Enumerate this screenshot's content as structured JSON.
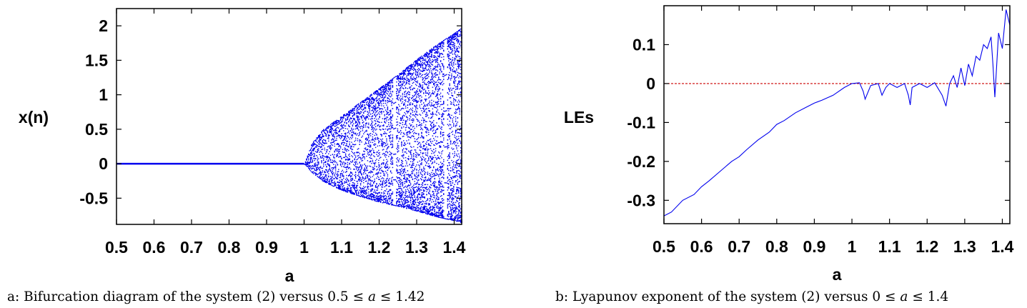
{
  "colors": {
    "series": "#0000ee",
    "zero_line": "#cc0000",
    "axis": "#000000"
  },
  "chart_data": [
    {
      "type": "scatter",
      "xlabel": "a",
      "ylabel": "x(n)",
      "caption": "a: Bifurcation diagram of the system (2) versus 0.5 ≤ 𝑎 ≤ 1.42",
      "xlim": [
        0.5,
        1.42
      ],
      "ylim": [
        -0.88,
        2.25
      ],
      "x_ticks": [
        0.5,
        0.6,
        0.7,
        0.8,
        0.9,
        1,
        1.1,
        1.2,
        1.3,
        1.4
      ],
      "x_tick_labels": [
        "0.5",
        "0.6",
        "0.7",
        "0.8",
        "0.9",
        "1",
        "1.1",
        "1.2",
        "1.3",
        "1.4"
      ],
      "y_ticks": [
        2,
        1.5,
        1,
        0.5,
        0,
        -0.5
      ],
      "y_tick_labels": [
        "2",
        "1.5",
        "1",
        "0.5",
        "0",
        "-0.5"
      ],
      "series": [
        {
          "fixed_point": {
            "a_range": [
              0.5,
              1.0
            ],
            "x": 0
          },
          "envelope": {
            "a": [
              1.0,
              1.02,
              1.05,
              1.1,
              1.15,
              1.2,
              1.25,
              1.3,
              1.35,
              1.4,
              1.42
            ],
            "upper": [
              0,
              0.3,
              0.5,
              0.7,
              0.9,
              1.1,
              1.3,
              1.52,
              1.72,
              1.9,
              1.98
            ],
            "lower": [
              0,
              -0.12,
              -0.25,
              -0.38,
              -0.47,
              -0.55,
              -0.61,
              -0.68,
              -0.76,
              -0.82,
              -0.85
            ]
          },
          "windows_a": [
            1.24,
            1.375
          ]
        }
      ]
    },
    {
      "type": "line",
      "xlabel": "a",
      "ylabel": "LEs",
      "caption": "b: Lyapunov exponent of the system (2) versus 0 ≤ 𝑎 ≤ 1.4",
      "xlim": [
        0.5,
        1.42
      ],
      "ylim": [
        -0.36,
        0.2
      ],
      "x_ticks": [
        0.5,
        0.6,
        0.7,
        0.8,
        0.9,
        1,
        1.1,
        1.2,
        1.3,
        1.4
      ],
      "x_tick_labels": [
        "0.5",
        "0.6",
        "0.7",
        "0.8",
        "0.9",
        "1",
        "1.1",
        "1.2",
        "1.3",
        "1.4"
      ],
      "y_ticks": [
        0.1,
        0,
        -0.1,
        -0.2,
        -0.3
      ],
      "y_tick_labels": [
        "0.1",
        "0",
        "-0.1",
        "-0.2",
        "-0.3"
      ],
      "reference_line": {
        "y": 0,
        "style": "dashed"
      },
      "series": [
        {
          "x": [
            0.5,
            0.52,
            0.55,
            0.58,
            0.6,
            0.62,
            0.65,
            0.68,
            0.7,
            0.72,
            0.75,
            0.78,
            0.8,
            0.82,
            0.85,
            0.88,
            0.9,
            0.92,
            0.95,
            0.98,
            1.0,
            1.02,
            1.03,
            1.035,
            1.05,
            1.07,
            1.08,
            1.09,
            1.1,
            1.12,
            1.14,
            1.15,
            1.155,
            1.16,
            1.18,
            1.2,
            1.22,
            1.24,
            1.25,
            1.26,
            1.27,
            1.28,
            1.29,
            1.3,
            1.31,
            1.32,
            1.33,
            1.34,
            1.35,
            1.36,
            1.37,
            1.375,
            1.38,
            1.39,
            1.4,
            1.41,
            1.42
          ],
          "y": [
            -0.34,
            -0.33,
            -0.3,
            -0.285,
            -0.265,
            -0.25,
            -0.225,
            -0.2,
            -0.188,
            -0.17,
            -0.145,
            -0.125,
            -0.105,
            -0.095,
            -0.075,
            -0.06,
            -0.05,
            -0.043,
            -0.03,
            -0.01,
            0,
            0.002,
            -0.02,
            -0.04,
            -0.005,
            0,
            -0.03,
            -0.01,
            0,
            -0.01,
            0,
            -0.03,
            -0.055,
            -0.01,
            0,
            -0.01,
            0.002,
            -0.03,
            -0.058,
            0,
            0.02,
            -0.01,
            0.04,
            -0.005,
            0.05,
            0.02,
            0.07,
            0.06,
            0.1,
            0.09,
            0.12,
            0.05,
            -0.035,
            0.13,
            0.09,
            0.19,
            0.15
          ]
        }
      ]
    }
  ]
}
